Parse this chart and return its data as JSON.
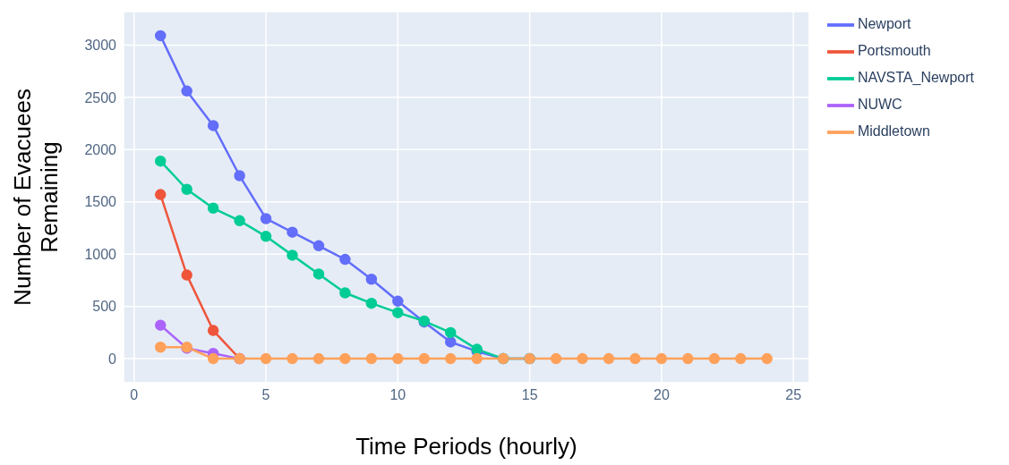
{
  "chart_data": {
    "type": "line",
    "xlabel": "Time Periods (hourly)",
    "ylabel": "Number of Evacuees Remaining",
    "x": [
      1,
      2,
      3,
      4,
      5,
      6,
      7,
      8,
      9,
      10,
      11,
      12,
      13,
      14,
      15,
      16,
      17,
      18,
      19,
      20,
      21,
      22,
      23,
      24
    ],
    "series": [
      {
        "name": "Newport",
        "color": "#636efa",
        "values": [
          3090,
          2560,
          2230,
          1750,
          1340,
          1210,
          1080,
          950,
          760,
          550,
          350,
          160,
          70,
          0,
          0,
          null,
          null,
          null,
          null,
          null,
          null,
          null,
          null,
          null
        ]
      },
      {
        "name": "Portsmouth",
        "color": "#ef553b",
        "values": [
          1570,
          800,
          270,
          0,
          null,
          null,
          null,
          null,
          null,
          null,
          null,
          null,
          null,
          null,
          null,
          null,
          null,
          null,
          null,
          null,
          null,
          null,
          null,
          null
        ]
      },
      {
        "name": "NAVSTA_Newport",
        "color": "#00cc96",
        "values": [
          1890,
          1620,
          1440,
          1320,
          1170,
          990,
          810,
          630,
          530,
          440,
          360,
          250,
          90,
          0,
          0,
          null,
          null,
          null,
          null,
          null,
          null,
          null,
          null,
          null
        ]
      },
      {
        "name": "NUWC",
        "color": "#ab63fa",
        "values": [
          320,
          100,
          50,
          0,
          null,
          null,
          null,
          null,
          null,
          null,
          null,
          null,
          null,
          null,
          null,
          null,
          null,
          null,
          null,
          null,
          null,
          null,
          null,
          null
        ]
      },
      {
        "name": "Middletown",
        "color": "#ffa15a",
        "values": [
          110,
          110,
          0,
          0,
          0,
          0,
          0,
          0,
          0,
          0,
          0,
          0,
          0,
          0,
          0,
          0,
          0,
          0,
          0,
          0,
          0,
          0,
          0,
          0
        ]
      }
    ],
    "xlim": [
      -0.4,
      25.6
    ],
    "xticks": [
      0,
      5,
      10,
      15,
      20,
      25
    ],
    "ylim": [
      -230,
      3320
    ],
    "yticks": [
      0,
      500,
      1000,
      1500,
      2000,
      2500,
      3000
    ],
    "grid": true,
    "legend": "top right",
    "marker": "circle",
    "line_style": "solid"
  }
}
